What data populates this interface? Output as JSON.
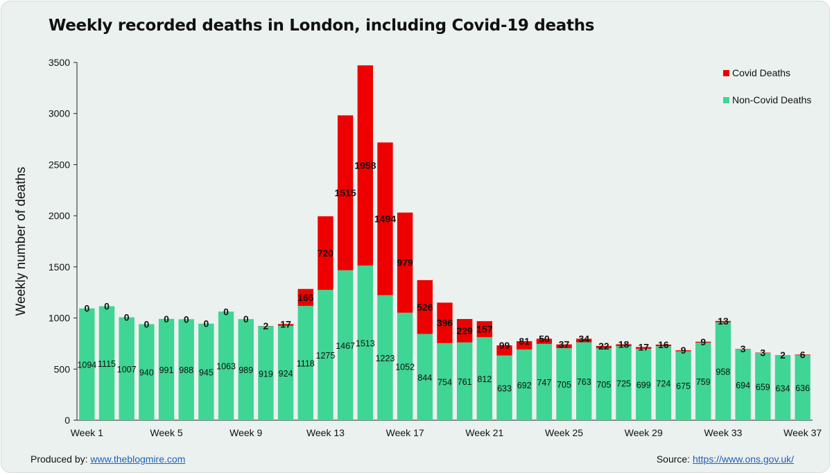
{
  "title": "Weekly recorded deaths in London, including Covid-19 deaths",
  "footer": {
    "produced_label": "Produced by: ",
    "produced_link": "www.theblogmire.com",
    "source_label": "Source: ",
    "source_link": "https://www.ons.gov.uk/"
  },
  "colors": {
    "covid": "#ee0000",
    "non_covid": "#3fd594"
  },
  "chart_data": {
    "type": "bar",
    "stacked": true,
    "title": "Weekly recorded deaths in London, including Covid-19 deaths",
    "xlabel": "",
    "ylabel": "Weekly number of deaths",
    "ylim": [
      0,
      3500
    ],
    "yticks": [
      0,
      500,
      1000,
      1500,
      2000,
      2500,
      3000,
      3500
    ],
    "xtick_labels": [
      "Week 1",
      "Week 5",
      "Week 9",
      "Week 13",
      "Week 17",
      "Week 21",
      "Week 25",
      "Week 29",
      "Week 33",
      "Week 37"
    ],
    "categories": [
      "Week 1",
      "Week 2",
      "Week 3",
      "Week 4",
      "Week 5",
      "Week 6",
      "Week 7",
      "Week 8",
      "Week 9",
      "Week 10",
      "Week 11",
      "Week 12",
      "Week 13",
      "Week 14",
      "Week 15",
      "Week 16",
      "Week 17",
      "Week 18",
      "Week 19",
      "Week 20",
      "Week 21",
      "Week 22",
      "Week 23",
      "Week 24",
      "Week 25",
      "Week 26",
      "Week 27",
      "Week 28",
      "Week 29",
      "Week 30",
      "Week 31",
      "Week 32",
      "Week 33",
      "Week 34",
      "Week 35",
      "Week 36",
      "Week 37"
    ],
    "legend_position": "top-right",
    "series": [
      {
        "name": "Non-Covid Deaths",
        "values": [
          1094,
          1115,
          1007,
          940,
          991,
          988,
          945,
          1063,
          989,
          919,
          924,
          1118,
          1275,
          1467,
          1513,
          1223,
          1052,
          844,
          754,
          761,
          812,
          633,
          692,
          747,
          705,
          763,
          705,
          725,
          699,
          724,
          675,
          759,
          958,
          694,
          659,
          634,
          636
        ]
      },
      {
        "name": "Covid Deaths",
        "values": [
          0,
          0,
          0,
          0,
          0,
          0,
          0,
          0,
          0,
          2,
          17,
          166,
          720,
          1515,
          1958,
          1494,
          979,
          526,
          396,
          229,
          157,
          99,
          81,
          50,
          37,
          34,
          22,
          18,
          17,
          16,
          9,
          9,
          13,
          3,
          3,
          2,
          6
        ]
      }
    ]
  }
}
